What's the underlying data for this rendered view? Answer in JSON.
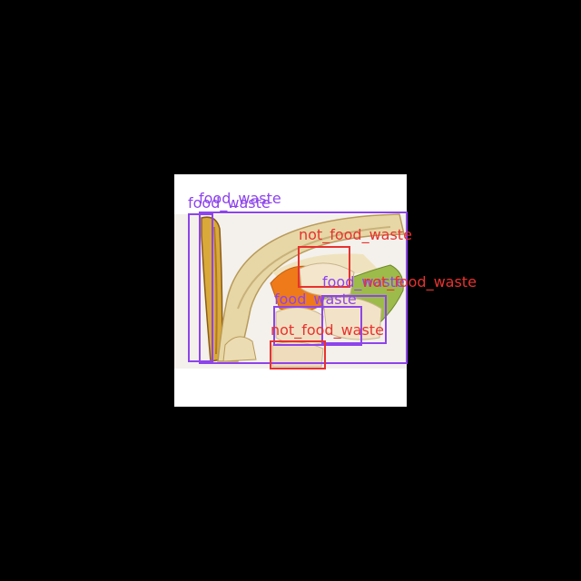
{
  "labels": {
    "food_waste": "food_waste",
    "not_food_waste": "not_food_waste"
  },
  "colors": {
    "background": "#000000",
    "photo_backdrop": "#ffffff",
    "food_waste_box": "#8e44ec",
    "not_food_waste_box": "#e8322f"
  },
  "detections": [
    {
      "class": "food_waste"
    },
    {
      "class": "food_waste"
    },
    {
      "class": "not_food_waste"
    },
    {
      "class": "food_waste"
    },
    {
      "class": "food_waste"
    },
    {
      "class": "not_food_waste"
    }
  ]
}
